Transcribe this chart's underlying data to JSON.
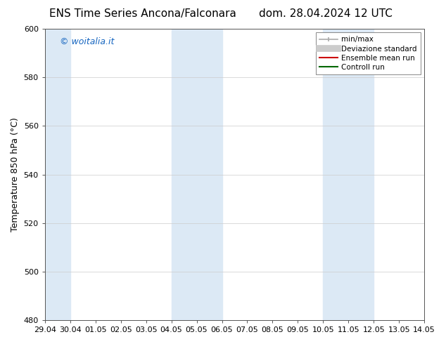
{
  "title_left": "ENS Time Series Ancona/Falconara",
  "title_right": "dom. 28.04.2024 12 UTC",
  "ylabel": "Temperature 850 hPa (°C)",
  "ylim": [
    480,
    600
  ],
  "yticks": [
    480,
    500,
    520,
    540,
    560,
    580,
    600
  ],
  "xtick_labels": [
    "29.04",
    "30.04",
    "01.05",
    "02.05",
    "03.05",
    "04.05",
    "05.05",
    "06.05",
    "07.05",
    "08.05",
    "09.05",
    "10.05",
    "11.05",
    "12.05",
    "13.05",
    "14.05"
  ],
  "shaded_bands": [
    {
      "xmin": 0,
      "xmax": 1,
      "color": "#dce9f5"
    },
    {
      "xmin": 5,
      "xmax": 7,
      "color": "#dce9f5"
    },
    {
      "xmin": 11,
      "xmax": 13,
      "color": "#dce9f5"
    }
  ],
  "watermark_text": "© woitalia.it",
  "watermark_color": "#1565c0",
  "background_color": "#ffffff",
  "plot_bg_color": "#ffffff",
  "legend_items": [
    {
      "label": "min/max",
      "color": "#aaaaaa",
      "lw": 1.5
    },
    {
      "label": "Deviazione standard",
      "color": "#cccccc",
      "lw": 6
    },
    {
      "label": "Ensemble mean run",
      "color": "#cc0000",
      "lw": 1.5
    },
    {
      "label": "Controll run",
      "color": "#006600",
      "lw": 1.5
    }
  ],
  "title_fontsize": 11,
  "axis_fontsize": 9,
  "tick_fontsize": 8,
  "legend_fontsize": 7.5
}
